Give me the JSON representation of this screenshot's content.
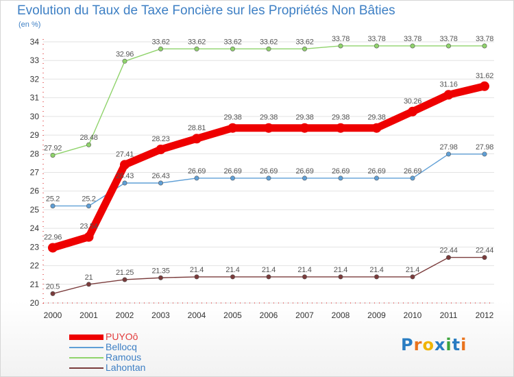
{
  "title": "Evolution du Taux de Taxe Foncière sur les Propriétés Non Bâties",
  "unit_label": "(en %)",
  "logo_text": "Proxiti",
  "colors": {
    "title": "#3d7fc4",
    "grid": "#e2e2e2",
    "axis_text": "#333333",
    "value_text": "#555555",
    "logo": [
      "#2a7dc2",
      "#e9731d",
      "#f0b400",
      "#2a7dc2",
      "#3ba33b",
      "#2a7dc2",
      "#e9731d"
    ]
  },
  "chart_data": {
    "type": "line",
    "title": "Evolution du Taux de Taxe Foncière sur les Propriétés Non Bâties",
    "ylabel": "(en %)",
    "xlabel": "",
    "x": [
      "2000",
      "2001",
      "2002",
      "2003",
      "2004",
      "2005",
      "2006",
      "2007",
      "2008",
      "2009",
      "2010",
      "2011",
      "2012"
    ],
    "ylim": [
      20,
      34
    ],
    "yticks": [
      "20",
      "21",
      "22",
      "23",
      "24",
      "25",
      "26",
      "27",
      "28",
      "29",
      "30",
      "31",
      "32",
      "33",
      "34"
    ],
    "grid": true,
    "legend_position": "bottom-left",
    "series": [
      {
        "name": "PUYOô",
        "color": "#ee0000",
        "emphasis": true,
        "values": [
          22.96,
          23.54,
          27.41,
          28.23,
          28.81,
          29.38,
          29.38,
          29.38,
          29.38,
          29.38,
          30.26,
          31.16,
          31.62
        ],
        "labels": [
          "22.96",
          "23.54",
          "27.41",
          "28.23",
          "28.81",
          "29.38",
          "29.38",
          "29.38",
          "29.38",
          "29.38",
          "30.26",
          "31.16",
          "31.62"
        ]
      },
      {
        "name": "Bellocq",
        "color": "#5f9fd6",
        "emphasis": false,
        "values": [
          25.2,
          25.2,
          26.43,
          26.43,
          26.69,
          26.69,
          26.69,
          26.69,
          26.69,
          26.69,
          26.69,
          27.98,
          27.98
        ],
        "labels": [
          "25.2",
          "25.2",
          "26.43",
          "26.43",
          "26.69",
          "26.69",
          "26.69",
          "26.69",
          "26.69",
          "26.69",
          "26.69",
          "27.98",
          "27.98"
        ]
      },
      {
        "name": "Ramous",
        "color": "#8fd36b",
        "emphasis": false,
        "values": [
          27.92,
          28.48,
          32.96,
          33.62,
          33.62,
          33.62,
          33.62,
          33.62,
          33.78,
          33.78,
          33.78,
          33.78,
          33.78
        ],
        "labels": [
          "27.92",
          "28.48",
          "32.96",
          "33.62",
          "33.62",
          "33.62",
          "33.62",
          "33.62",
          "33.78",
          "33.78",
          "33.78",
          "33.78",
          "33.78"
        ]
      },
      {
        "name": "Lahontan",
        "color": "#7a3b3b",
        "emphasis": false,
        "values": [
          20.5,
          21,
          21.25,
          21.35,
          21.4,
          21.4,
          21.4,
          21.4,
          21.4,
          21.4,
          21.4,
          22.44,
          22.44
        ],
        "labels": [
          "20.5",
          "21",
          "21.25",
          "21.35",
          "21.4",
          "21.4",
          "21.4",
          "21.4",
          "21.4",
          "21.4",
          "21.4",
          "22.44",
          "22.44"
        ]
      }
    ]
  }
}
